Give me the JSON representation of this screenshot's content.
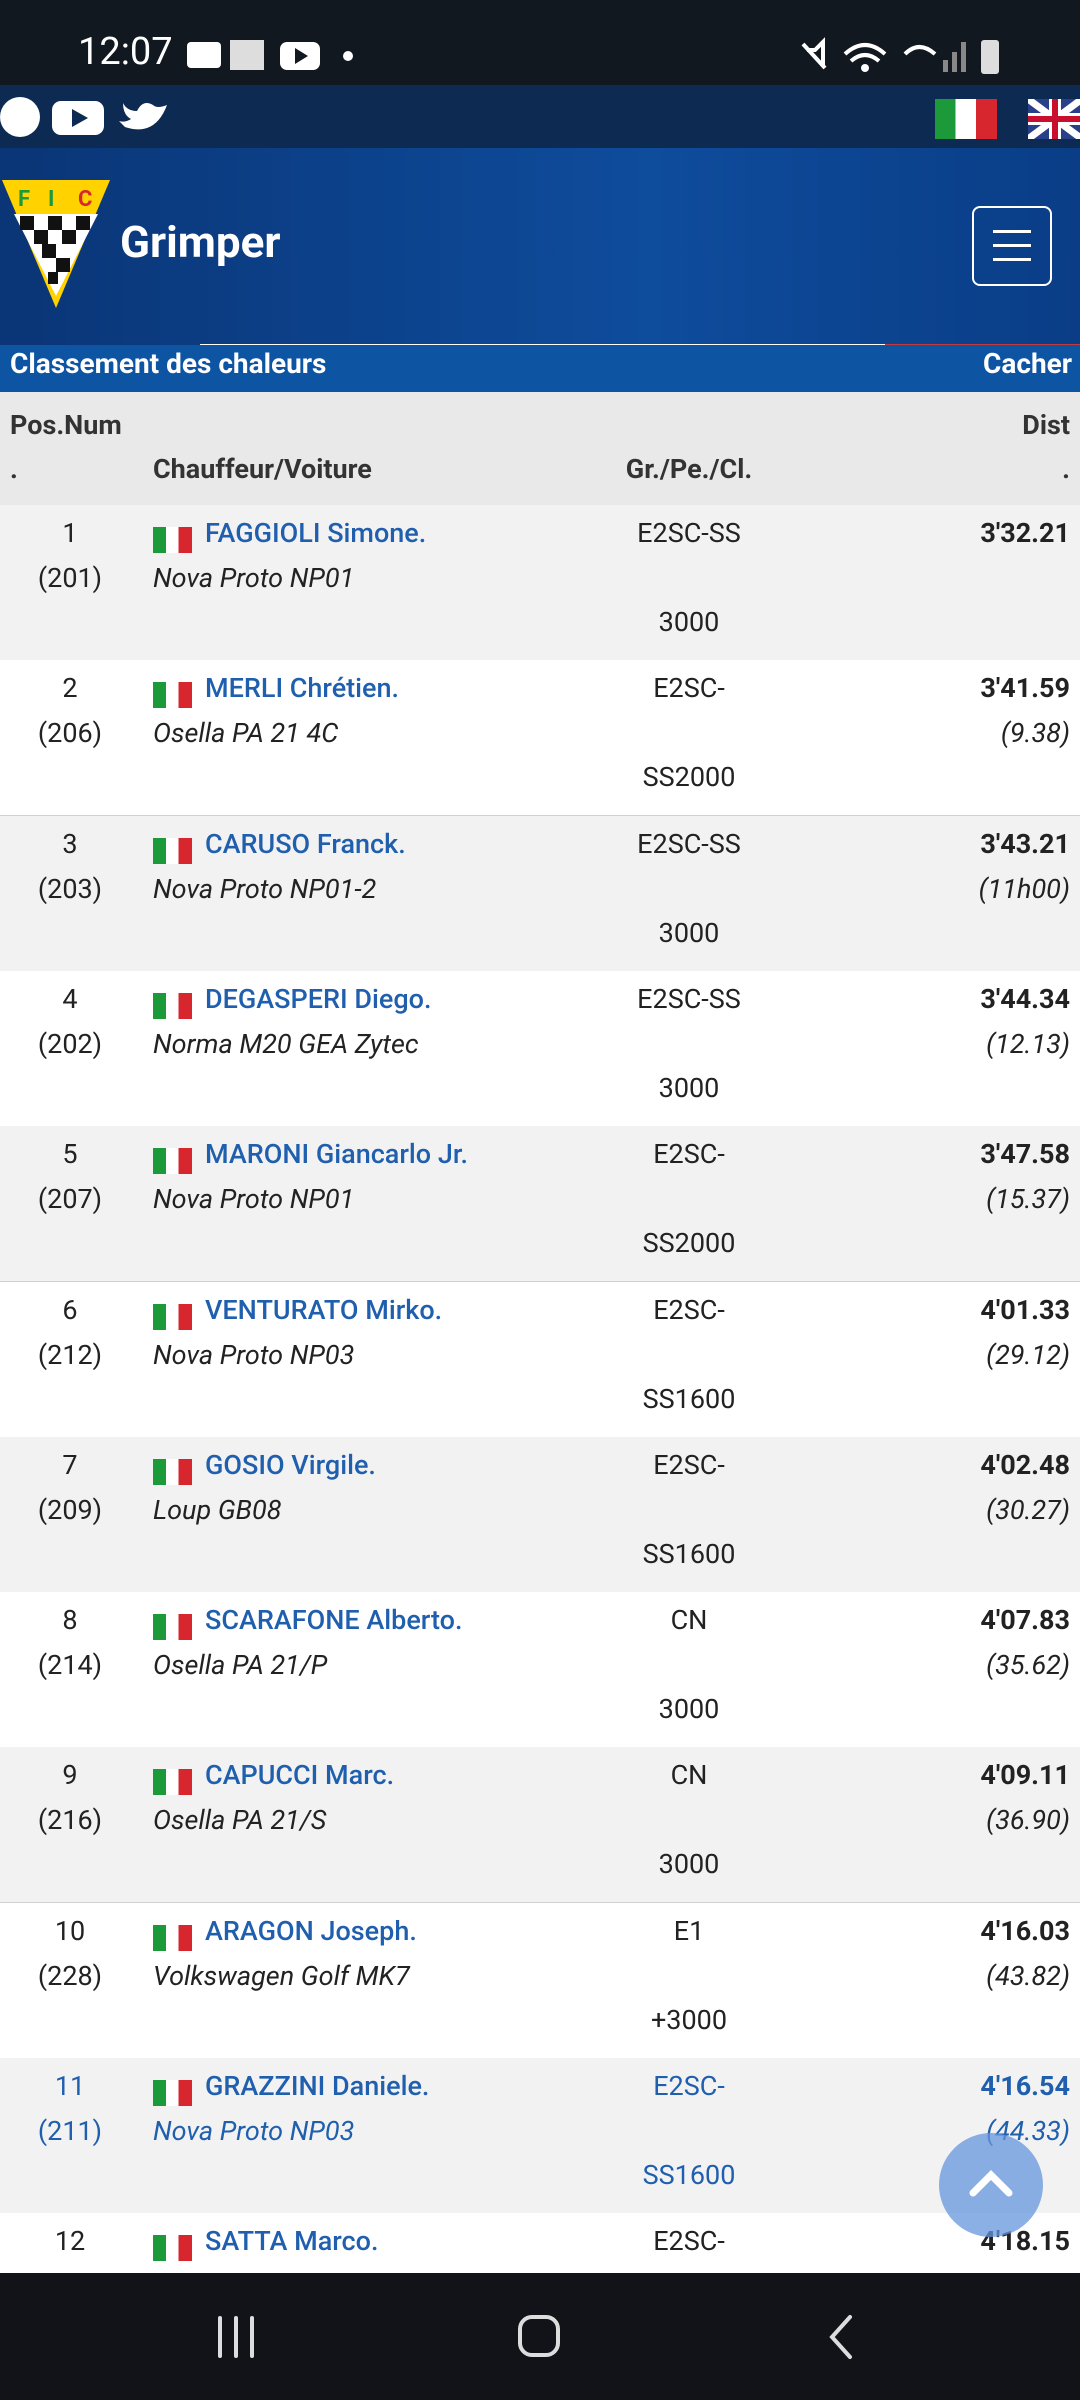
{
  "status_bar": {
    "time": "12:07"
  },
  "header": {
    "brand": "Grimper"
  },
  "subheader": {
    "title": "Classement des chaleurs",
    "action": "Cacher"
  },
  "table": {
    "columns": {
      "pos": "Pos.Num",
      "pos_dot": ".",
      "driver": "Chauffeur/Voiture",
      "group": "Gr./Pe./Cl.",
      "dist": "Dist",
      "dist_dot": "."
    },
    "rows": [
      {
        "pos": "1",
        "num": "(201)",
        "driver": "FAGGIOLI Simone.",
        "car": "Nova Proto NP01",
        "group": [
          "E2SC-SS",
          "3000"
        ],
        "time": "3'32.21"
      },
      {
        "pos": "2",
        "num": "(206)",
        "driver": "MERLI Chrétien.",
        "car": "Osella PA 21 4C",
        "group": [
          "E2SC-",
          "SS2000"
        ],
        "time": "3'41.59",
        "gap": "(9.38)"
      },
      {
        "pos": "3",
        "num": "(203)",
        "driver": "CARUSO Franck.",
        "car": "Nova Proto NP01-2",
        "group": [
          "E2SC-SS",
          "3000"
        ],
        "time": "3'43.21",
        "gap": "(11h00)"
      },
      {
        "pos": "4",
        "num": "(202)",
        "driver": "DEGASPERI Diego.",
        "car": "Norma M20 GEA Zytec",
        "group": [
          "E2SC-SS",
          "3000"
        ],
        "time": "3'44.34",
        "gap": "(12.13)"
      },
      {
        "pos": "5",
        "num": "(207)",
        "driver": "MARONI Giancarlo Jr.",
        "car": "Nova Proto NP01",
        "group": [
          "E2SC-",
          "SS2000"
        ],
        "time": "3'47.58",
        "gap": "(15.37)"
      },
      {
        "pos": "6",
        "num": "(212)",
        "driver": "VENTURATO Mirko.",
        "car": "Nova Proto NP03",
        "group": [
          "E2SC-",
          "SS1600"
        ],
        "time": "4'01.33",
        "gap": "(29.12)"
      },
      {
        "pos": "7",
        "num": "(209)",
        "driver": "GOSIO Virgile.",
        "car": "Loup GB08",
        "group": [
          "E2SC-",
          "SS1600"
        ],
        "time": "4'02.48",
        "gap": "(30.27)"
      },
      {
        "pos": "8",
        "num": "(214)",
        "driver": "SCARAFONE Alberto.",
        "car": "Osella PA 21/P",
        "group": [
          "CN",
          "3000"
        ],
        "time": "4'07.83",
        "gap": "(35.62)"
      },
      {
        "pos": "9",
        "num": "(216)",
        "driver": "CAPUCCI Marc.",
        "car": "Osella PA 21/S",
        "group": [
          "CN",
          "3000"
        ],
        "time": "4'09.11",
        "gap": "(36.90)"
      },
      {
        "pos": "10",
        "num": "(228)",
        "driver": "ARAGON Joseph.",
        "car": "Volkswagen Golf MK7",
        "group": [
          "E1",
          "+3000"
        ],
        "time": "4'16.03",
        "gap": "(43.82)"
      },
      {
        "pos": "11",
        "num": "(211)",
        "driver": "GRAZZINI Daniele.",
        "car": "Nova Proto NP03",
        "group": [
          "E2SC-",
          "SS1600"
        ],
        "time": "4'16.54",
        "gap": "(44.33)",
        "highlight": true
      },
      {
        "pos": "12",
        "driver": "SATTA Marco.",
        "group": [
          "E2SC-"
        ],
        "time": "4'18.15"
      }
    ]
  }
}
